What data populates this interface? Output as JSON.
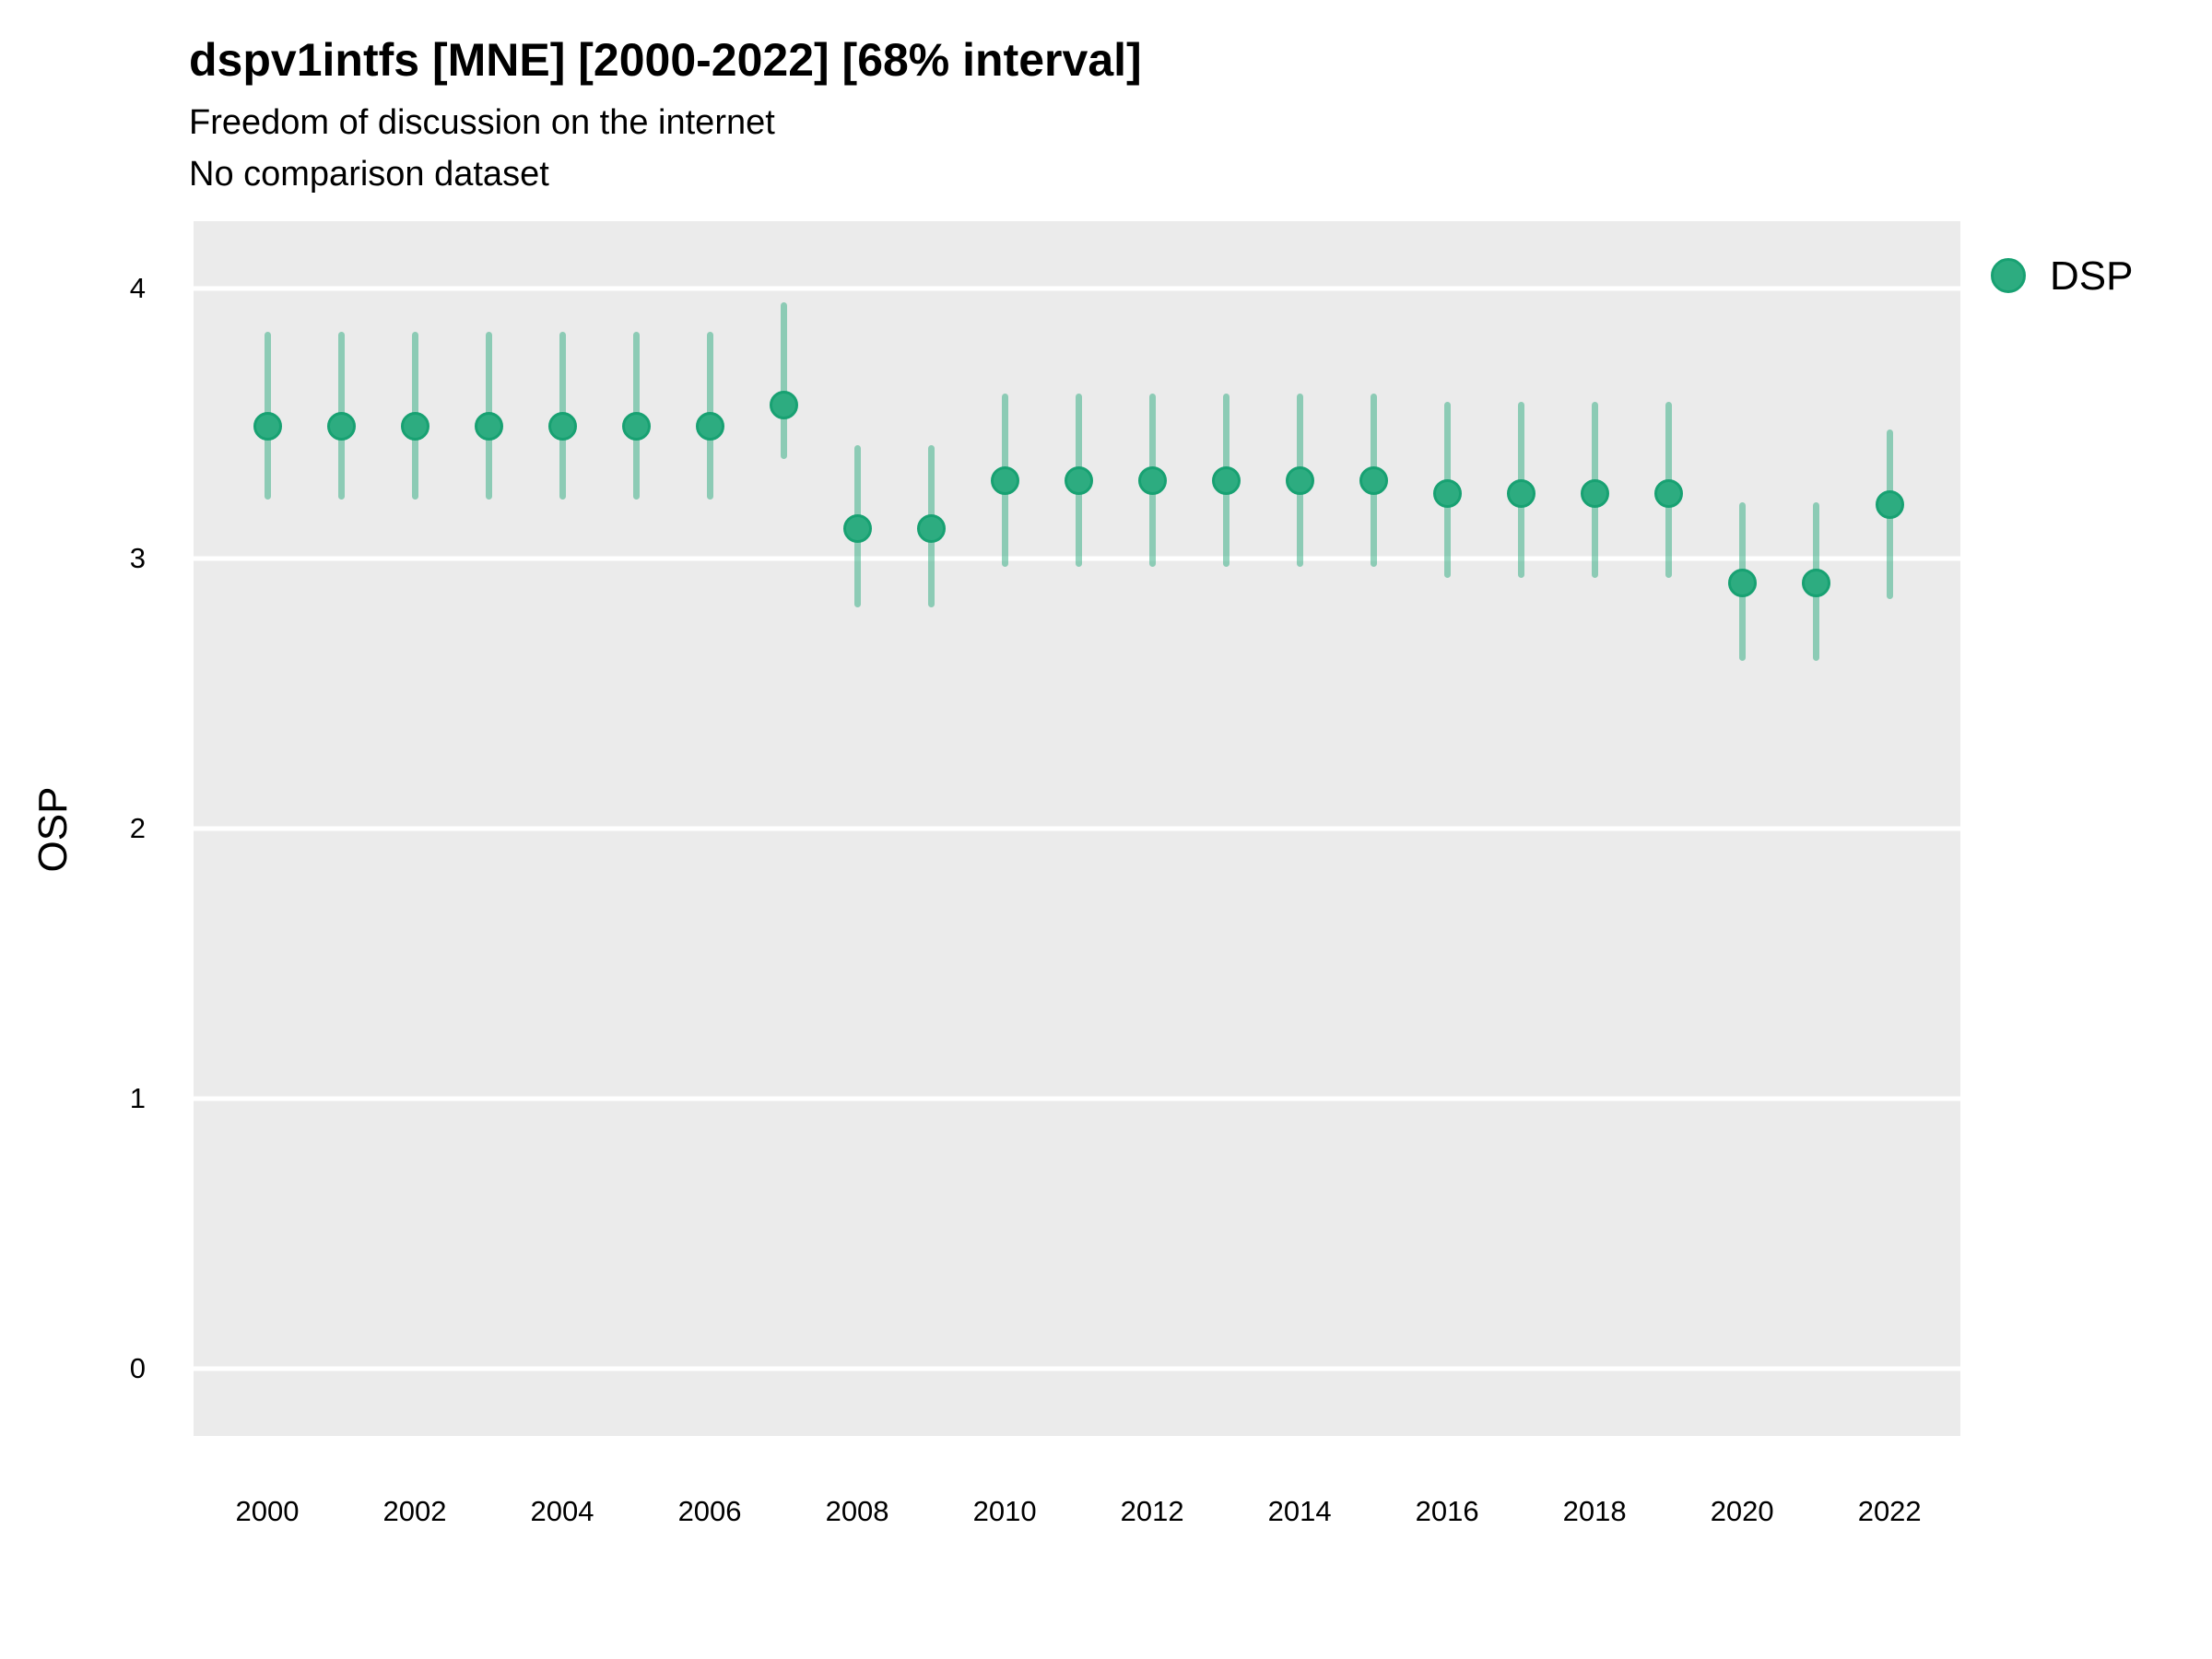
{
  "header": {
    "title": "dspv1intfs [MNE] [2000-2022] [68% interval]",
    "subtitle": "Freedom of discussion on the internet",
    "note": "No comparison dataset"
  },
  "legend": {
    "label": "DSP",
    "position": "right-top"
  },
  "chart_data": {
    "type": "pointrange",
    "title": "dspv1intfs [MNE] [2000-2022] [68% interval]",
    "subtitle": "Freedom of discussion on the internet",
    "note": "No comparison dataset",
    "series_name": "DSP",
    "interval_label": "68% interval",
    "xlabel": "",
    "ylabel": "OSP",
    "grid": "horizontal-major-only",
    "legend_position": "right-top",
    "x_range": [
      1999.0,
      2022.96
    ],
    "y_range": [
      -0.25,
      4.25
    ],
    "x_ticks": [
      2000,
      2002,
      2004,
      2006,
      2008,
      2010,
      2012,
      2014,
      2016,
      2018,
      2020,
      2022
    ],
    "y_ticks": [
      0,
      1,
      2,
      3,
      4
    ],
    "points": [
      {
        "year": 2000,
        "value": 3.49,
        "lo": 3.22,
        "hi": 3.84
      },
      {
        "year": 2001,
        "value": 3.49,
        "lo": 3.22,
        "hi": 3.84
      },
      {
        "year": 2002,
        "value": 3.49,
        "lo": 3.22,
        "hi": 3.84
      },
      {
        "year": 2003,
        "value": 3.49,
        "lo": 3.22,
        "hi": 3.84
      },
      {
        "year": 2004,
        "value": 3.49,
        "lo": 3.22,
        "hi": 3.84
      },
      {
        "year": 2005,
        "value": 3.49,
        "lo": 3.22,
        "hi": 3.84
      },
      {
        "year": 2006,
        "value": 3.49,
        "lo": 3.22,
        "hi": 3.84
      },
      {
        "year": 2007,
        "value": 3.57,
        "lo": 3.37,
        "hi": 3.95
      },
      {
        "year": 2008,
        "value": 3.11,
        "lo": 2.82,
        "hi": 3.42
      },
      {
        "year": 2009,
        "value": 3.11,
        "lo": 2.82,
        "hi": 3.42
      },
      {
        "year": 2010,
        "value": 3.29,
        "lo": 2.97,
        "hi": 3.61
      },
      {
        "year": 2011,
        "value": 3.29,
        "lo": 2.97,
        "hi": 3.61
      },
      {
        "year": 2012,
        "value": 3.29,
        "lo": 2.97,
        "hi": 3.61
      },
      {
        "year": 2013,
        "value": 3.29,
        "lo": 2.97,
        "hi": 3.61
      },
      {
        "year": 2014,
        "value": 3.29,
        "lo": 2.97,
        "hi": 3.61
      },
      {
        "year": 2015,
        "value": 3.29,
        "lo": 2.97,
        "hi": 3.61
      },
      {
        "year": 2016,
        "value": 3.24,
        "lo": 2.93,
        "hi": 3.58
      },
      {
        "year": 2017,
        "value": 3.24,
        "lo": 2.93,
        "hi": 3.58
      },
      {
        "year": 2018,
        "value": 3.24,
        "lo": 2.93,
        "hi": 3.58
      },
      {
        "year": 2019,
        "value": 3.24,
        "lo": 2.93,
        "hi": 3.58
      },
      {
        "year": 2020,
        "value": 2.91,
        "lo": 2.62,
        "hi": 3.21
      },
      {
        "year": 2021,
        "value": 2.91,
        "lo": 2.62,
        "hi": 3.21
      },
      {
        "year": 2022,
        "value": 3.2,
        "lo": 2.85,
        "hi": 3.48
      }
    ],
    "colors": {
      "point_fill": "#2dac80",
      "point_stroke": "#18a172",
      "interval_bar": "rgba(45,172,128,0.5)",
      "panel_background": "#EBEBEB",
      "gridline": "#ffffff",
      "text": "#000000"
    }
  }
}
